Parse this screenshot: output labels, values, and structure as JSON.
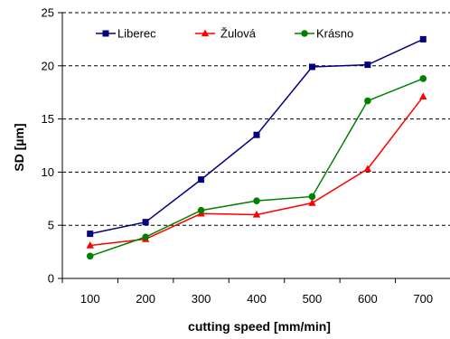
{
  "chart_data": {
    "type": "line",
    "title": "",
    "xlabel": "cutting speed [mm/min]",
    "ylabel": "SD [µm]",
    "categories": [
      "100",
      "200",
      "300",
      "400",
      "500",
      "600",
      "700"
    ],
    "ylim": [
      0,
      25
    ],
    "yticks": [
      "0",
      "5",
      "10",
      "15",
      "20",
      "25"
    ],
    "grid": "horizontal dashed",
    "legend_position": "top-left",
    "series": [
      {
        "name": "Liberec",
        "color": "#000080",
        "marker": "square",
        "values": [
          4.2,
          5.3,
          9.3,
          13.5,
          19.9,
          20.1,
          22.5
        ]
      },
      {
        "name": "Žulová",
        "color": "#ff0000",
        "marker": "triangle",
        "values": [
          3.1,
          3.7,
          6.1,
          6.0,
          7.1,
          10.3,
          17.1
        ]
      },
      {
        "name": "Krásno",
        "color": "#008000",
        "marker": "circle",
        "values": [
          2.1,
          3.9,
          6.4,
          7.3,
          7.7,
          16.7,
          18.8
        ]
      }
    ]
  }
}
